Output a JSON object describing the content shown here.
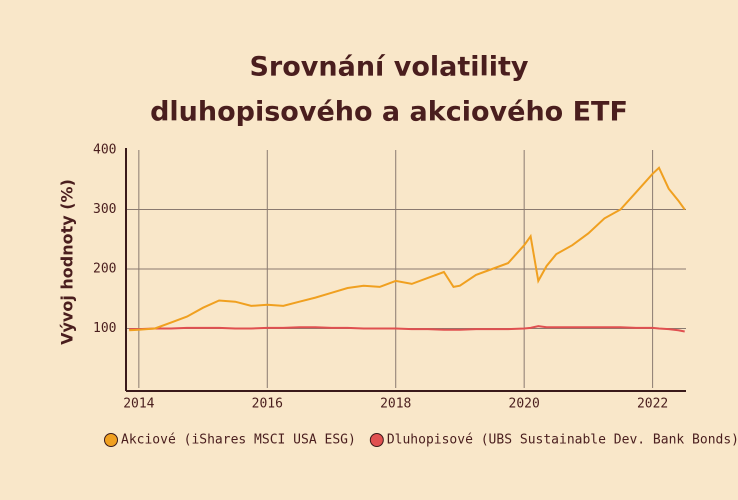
{
  "chart_data": {
    "type": "line",
    "title": "Srovnání volatility",
    "subtitle": "dluhopisového a akciového ETF",
    "ylabel": "Vývoj hodnoty (%)",
    "x": [
      2013.85,
      2014.0,
      2014.25,
      2014.5,
      2014.75,
      2015.0,
      2015.25,
      2015.5,
      2015.75,
      2016.0,
      2016.25,
      2016.5,
      2016.75,
      2017.0,
      2017.25,
      2017.5,
      2017.75,
      2018.0,
      2018.25,
      2018.5,
      2018.75,
      2018.9,
      2019.0,
      2019.25,
      2019.5,
      2019.75,
      2020.0,
      2020.1,
      2020.22,
      2020.35,
      2020.5,
      2020.75,
      2021.0,
      2021.25,
      2021.5,
      2021.75,
      2022.0,
      2022.1,
      2022.25,
      2022.4,
      2022.5
    ],
    "series": [
      {
        "name": "Akciové (iShares MSCI USA ESG)",
        "color": "#f0a020",
        "values": [
          97,
          98,
          100,
          110,
          120,
          135,
          147,
          145,
          138,
          140,
          138,
          145,
          152,
          160,
          168,
          172,
          170,
          180,
          175,
          185,
          195,
          170,
          172,
          190,
          200,
          210,
          240,
          255,
          180,
          205,
          225,
          240,
          260,
          285,
          300,
          330,
          360,
          370,
          335,
          315,
          300
        ]
      },
      {
        "name": "Dluhopisové (UBS Sustainable Dev. Bank Bonds)",
        "color": "#e05050",
        "values": [
          99,
          99,
          100,
          100,
          101,
          101,
          101,
          100,
          100,
          101,
          101,
          102,
          102,
          101,
          101,
          100,
          100,
          100,
          99,
          99,
          98,
          98,
          98,
          99,
          99,
          99,
          100,
          101,
          104,
          102,
          102,
          102,
          102,
          102,
          102,
          101,
          101,
          100,
          99,
          97,
          95
        ]
      }
    ],
    "xlim": [
      2013.8,
      2022.52
    ],
    "xticks": [
      2014,
      2016,
      2018,
      2020,
      2022
    ],
    "ylim": [
      0,
      400
    ],
    "yticks": [
      100,
      200,
      300,
      400
    ],
    "grid": true,
    "legend": "bottom"
  }
}
